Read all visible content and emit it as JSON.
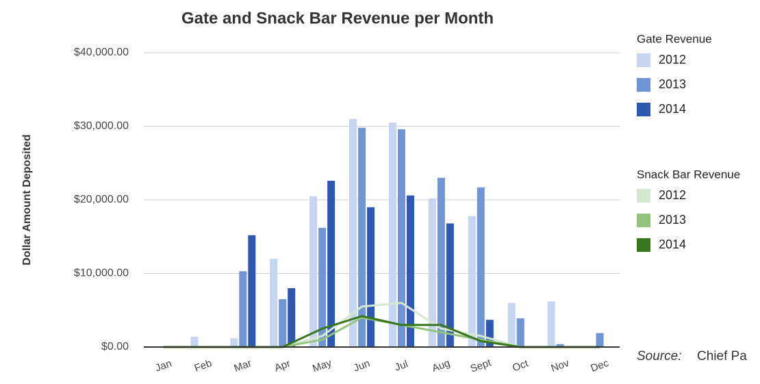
{
  "chart_data": {
    "type": "bar",
    "title": "Gate and Snack Bar Revenue per Month",
    "y_label": "Dollar Amount Deposited",
    "categories": [
      "Jan",
      "Feb",
      "Mar",
      "Apr",
      "May",
      "Jun",
      "Jul",
      "Aug",
      "Sept",
      "Oct",
      "Nov",
      "Dec"
    ],
    "ylim": [
      0,
      40000
    ],
    "yticks": [
      {
        "value": 0,
        "label": "$0.00"
      },
      {
        "value": 10000,
        "label": "$10,000.00"
      },
      {
        "value": 20000,
        "label": "$20,000.00"
      },
      {
        "value": 30000,
        "label": "$30,000.00"
      },
      {
        "value": 40000,
        "label": "$40,000.00"
      }
    ],
    "grid": true,
    "bars": {
      "legend_title": "Gate Revenue",
      "series": [
        {
          "name": "2012",
          "color": "#c6d6f0",
          "values": [
            0,
            1400,
            1200,
            12000,
            20500,
            31000,
            30500,
            20200,
            17800,
            6000,
            6200,
            0
          ]
        },
        {
          "name": "2013",
          "color": "#6f95d6",
          "values": [
            0,
            0,
            10300,
            6500,
            16200,
            29800,
            29600,
            23000,
            21700,
            3900,
            400,
            1900
          ]
        },
        {
          "name": "2014",
          "color": "#2f58b0",
          "values": [
            0,
            0,
            15200,
            8000,
            22600,
            19000,
            20600,
            16800,
            3700,
            0,
            0,
            0
          ]
        }
      ]
    },
    "lines": {
      "type": "line",
      "legend_title": "Snack Bar Revenue",
      "series": [
        {
          "name": "2012",
          "color": "#d5e8cf",
          "values": [
            0,
            0,
            0,
            0,
            1500,
            5500,
            6000,
            2500,
            1500,
            0,
            0,
            0
          ]
        },
        {
          "name": "2013",
          "color": "#93c47d",
          "values": [
            0,
            0,
            0,
            0,
            1000,
            4000,
            3000,
            2000,
            1000,
            0,
            0,
            0
          ]
        },
        {
          "name": "2014",
          "color": "#38761d",
          "values": [
            0,
            0,
            0,
            0,
            2500,
            4200,
            3000,
            3000,
            800,
            0,
            0,
            0
          ]
        }
      ]
    },
    "source": {
      "label": "Source:",
      "text": "Chief Pa"
    }
  }
}
